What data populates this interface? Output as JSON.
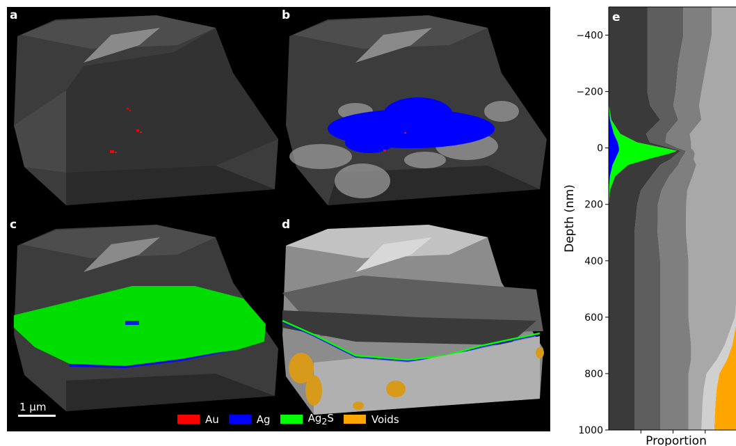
{
  "panels": [
    {
      "letter": "a",
      "overlay": "au"
    },
    {
      "letter": "b",
      "overlay": "ag"
    },
    {
      "letter": "c",
      "overlay": "ag2s"
    },
    {
      "letter": "d",
      "overlay": "cross-section"
    }
  ],
  "scalebar": {
    "label": "1 µm"
  },
  "legend": [
    {
      "label": "Au",
      "color": "#ff0000"
    },
    {
      "label": "Ag",
      "color": "#0000ff"
    },
    {
      "label": "Ag2S",
      "label_base": "Ag",
      "label_sub": "2",
      "label_tail": "S",
      "color": "#00ff00"
    },
    {
      "label": "Voids",
      "color": "#ffa500"
    }
  ],
  "chart_data": {
    "type": "area",
    "panel_letter": "e",
    "ylabel": "Depth (nm)",
    "xlabel": "Proportion",
    "ylim": [
      -500,
      1000
    ],
    "y_inverted": false,
    "yticks": [
      -400,
      -200,
      0,
      200,
      400,
      600,
      800,
      1000
    ],
    "ytick_labels": [
      "−400",
      "−200",
      "0",
      "200",
      "400",
      "600",
      "800",
      "1000"
    ],
    "depth": [
      -500,
      -400,
      -300,
      -200,
      -150,
      -100,
      -50,
      -20,
      0,
      10,
      20,
      40,
      60,
      100,
      150,
      200,
      300,
      400,
      500,
      600,
      700,
      750,
      800,
      850,
      900,
      1000
    ],
    "series": [
      {
        "color": "#0000ff",
        "values": [
          0,
          0,
          0,
          0,
          0,
          0.01,
          0.04,
          0.07,
          0.08,
          0.08,
          0.07,
          0.05,
          0.03,
          0.01,
          0,
          0,
          0,
          0,
          0,
          0,
          0,
          0,
          0,
          0,
          0,
          0
        ]
      },
      {
        "color": "#00ff00",
        "values": [
          0,
          0,
          0,
          0,
          0.002,
          0.01,
          0.05,
          0.15,
          0.35,
          0.45,
          0.4,
          0.25,
          0.12,
          0.04,
          0.01,
          0.002,
          0,
          0,
          0,
          0,
          0,
          0,
          0,
          0,
          0,
          0
        ]
      },
      {
        "color": "#3a3a3a",
        "values": [
          0.3,
          0.3,
          0.3,
          0.3,
          0.32,
          0.38,
          0.2,
          0.1,
          0.05,
          0.03,
          0.06,
          0.18,
          0.25,
          0.28,
          0.24,
          0.22,
          0.2,
          0.2,
          0.2,
          0.2,
          0.2,
          0.2,
          0.2,
          0.2,
          0.2,
          0.2
        ]
      },
      {
        "color": "#5e5e5e",
        "values": [
          0.28,
          0.28,
          0.24,
          0.22,
          0.18,
          0.14,
          0.16,
          0.12,
          0.06,
          0.04,
          0.06,
          0.08,
          0.14,
          0.14,
          0.16,
          0.16,
          0.18,
          0.2,
          0.2,
          0.2,
          0.2,
          0.2,
          0.2,
          0.2,
          0.2,
          0.2
        ]
      },
      {
        "color": "#7f7f7f",
        "values": [
          0.22,
          0.22,
          0.22,
          0.2,
          0.2,
          0.18,
          0.18,
          0.2,
          0.1,
          0.06,
          0.08,
          0.1,
          0.14,
          0.18,
          0.2,
          0.22,
          0.22,
          0.22,
          0.22,
          0.22,
          0.24,
          0.24,
          0.22,
          0.22,
          0.22,
          0.22
        ]
      },
      {
        "color": "#a8a8a8",
        "values": [
          0.2,
          0.2,
          0.24,
          0.28,
          0.3,
          0.3,
          0.37,
          0.36,
          0.36,
          0.34,
          0.33,
          0.34,
          0.32,
          0.35,
          0.39,
          0.4,
          0.4,
          0.38,
          0.38,
          0.36,
          0.26,
          0.2,
          0.14,
          0.12,
          0.11,
          0.1
        ]
      },
      {
        "color": "#d0d0d0",
        "values": [
          0,
          0,
          0,
          0,
          0,
          0,
          0,
          0,
          0,
          0,
          0,
          0,
          0,
          0,
          0,
          0,
          0,
          0,
          0,
          0.02,
          0.06,
          0.08,
          0.1,
          0.1,
          0.1,
          0.1
        ]
      },
      {
        "color": "#ffa500",
        "values": [
          0,
          0,
          0,
          0,
          0,
          0,
          0,
          0,
          0,
          0,
          0,
          0,
          0,
          0,
          0,
          0,
          0,
          0,
          0,
          0,
          0.04,
          0.08,
          0.14,
          0.16,
          0.17,
          0.18
        ]
      }
    ]
  }
}
